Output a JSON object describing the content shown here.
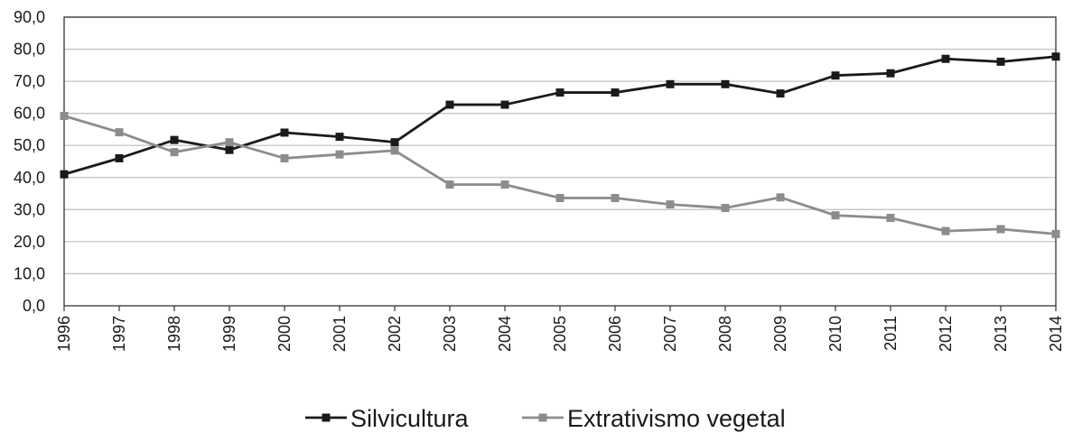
{
  "chart_data": {
    "type": "line",
    "title": "",
    "xlabel": "",
    "ylabel": "",
    "categories": [
      "1996",
      "1997",
      "1998",
      "1999",
      "2000",
      "2001",
      "2002",
      "2003",
      "2004",
      "2005",
      "2006",
      "2007",
      "2008",
      "2009",
      "2010",
      "2011",
      "2012",
      "2013",
      "2014"
    ],
    "y_ticks": [
      "0,0",
      "10,0",
      "20,0",
      "30,0",
      "40,0",
      "50,0",
      "60,0",
      "70,0",
      "80,0",
      "90,0"
    ],
    "ylim": [
      0,
      90
    ],
    "grid": true,
    "legend_position": "bottom",
    "series": [
      {
        "name": "Silvicultura",
        "color": "#1a1a1a",
        "marker": "square",
        "values": [
          41.0,
          46.0,
          51.7,
          48.6,
          54.0,
          52.7,
          51.0,
          62.7,
          62.7,
          66.5,
          66.5,
          69.1,
          69.1,
          66.2,
          71.8,
          72.5,
          77.0,
          76.1,
          77.7
        ]
      },
      {
        "name": "Extrativismo vegetal",
        "color": "#8c8c8c",
        "marker": "square",
        "values": [
          59.2,
          54.1,
          47.9,
          51.0,
          46.0,
          47.2,
          48.4,
          37.8,
          37.8,
          33.6,
          33.6,
          31.6,
          30.5,
          33.8,
          28.2,
          27.4,
          23.3,
          23.9,
          22.4
        ]
      }
    ]
  }
}
